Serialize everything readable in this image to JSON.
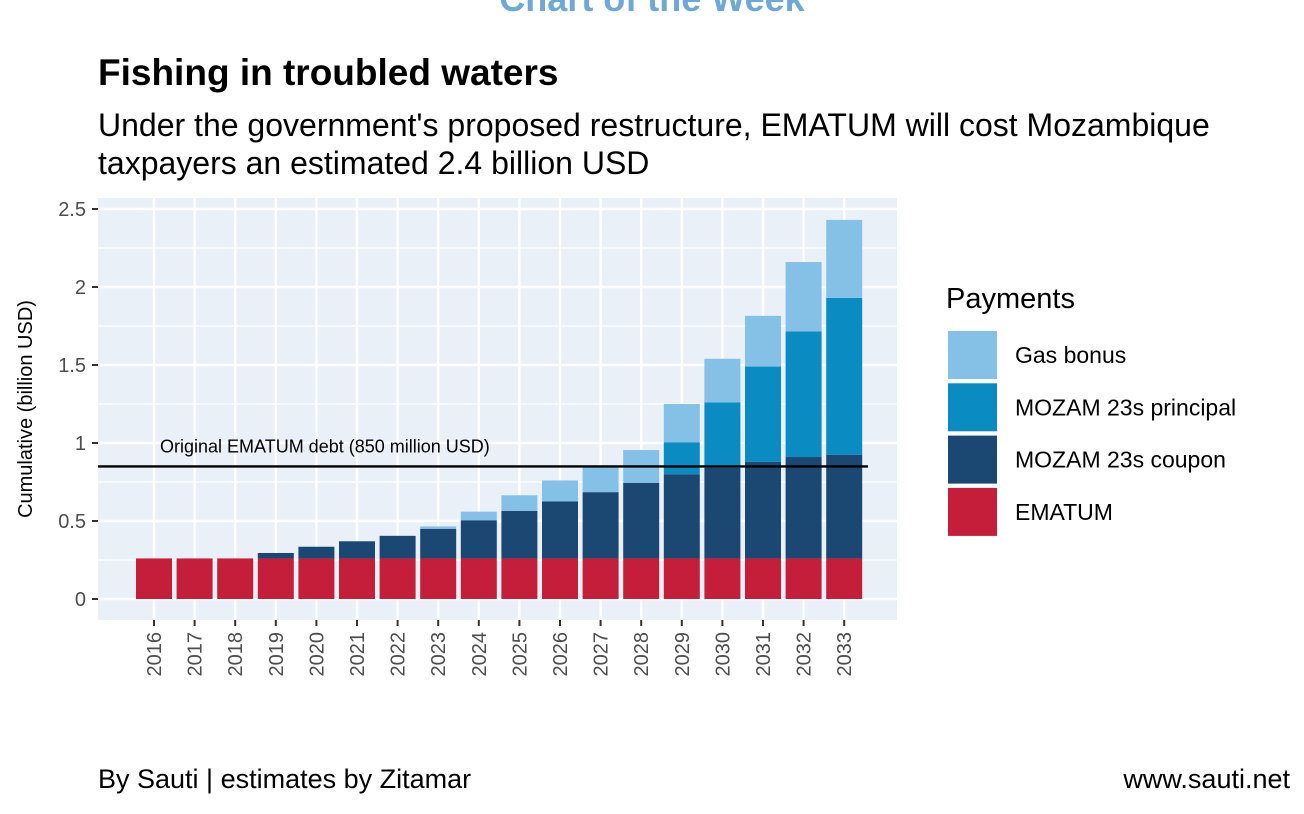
{
  "header": {
    "banner": "Chart of the Week",
    "title": "Fishing in troubled waters",
    "subtitle": "Under the government's proposed restructure, EMATUM will cost Mozambique taxpayers an estimated 2.4 billion USD"
  },
  "footer": {
    "left": "By Sauti | estimates by Zitamar",
    "right": "www.sauti.net"
  },
  "chart_data": {
    "type": "bar",
    "stacked": true,
    "ylabel": "Cumulative (billion USD)",
    "xlabel": "",
    "ylim": [
      0,
      2.5
    ],
    "yticks": [
      0,
      0.5,
      1,
      1.5,
      2,
      2.5
    ],
    "ytick_labels": [
      "0",
      "0.5",
      "1",
      "1.5",
      "2",
      "2.5"
    ],
    "grid": true,
    "legend_title": "Payments",
    "legend_position": "right",
    "categories": [
      "2016",
      "2017",
      "2018",
      "2019",
      "2020",
      "2021",
      "2022",
      "2023",
      "2024",
      "2025",
      "2026",
      "2027",
      "2028",
      "2029",
      "2030",
      "2031",
      "2032",
      "2033"
    ],
    "series": [
      {
        "name": "EMATUM",
        "color": "#c41e3a",
        "values": [
          0.26,
          0.26,
          0.26,
          0.26,
          0.26,
          0.26,
          0.26,
          0.26,
          0.26,
          0.26,
          0.26,
          0.26,
          0.26,
          0.26,
          0.26,
          0.26,
          0.26,
          0.26
        ]
      },
      {
        "name": "MOZAM 23s coupon",
        "color": "#1b4872",
        "values": [
          0,
          0,
          0,
          0.035,
          0.075,
          0.11,
          0.145,
          0.19,
          0.245,
          0.305,
          0.365,
          0.425,
          0.485,
          0.54,
          0.58,
          0.62,
          0.65,
          0.665
        ]
      },
      {
        "name": "MOZAM 23s principal",
        "color": "#0a8bc2",
        "values": [
          0,
          0,
          0,
          0,
          0,
          0,
          0,
          0,
          0,
          0,
          0,
          0,
          0,
          0.205,
          0.42,
          0.61,
          0.805,
          1.005
        ]
      },
      {
        "name": "Gas bonus",
        "color": "#85c1e6",
        "values": [
          0,
          0,
          0,
          0,
          0,
          0,
          0,
          0.015,
          0.055,
          0.1,
          0.135,
          0.17,
          0.21,
          0.245,
          0.28,
          0.325,
          0.445,
          0.5
        ]
      }
    ],
    "legend_order": [
      "Gas bonus",
      "MOZAM 23s principal",
      "MOZAM 23s coupon",
      "EMATUM"
    ],
    "reference_line": {
      "value": 0.85,
      "label": "Original EMATUM debt (850 million USD)"
    },
    "panel_color": "#e9f0f7"
  }
}
